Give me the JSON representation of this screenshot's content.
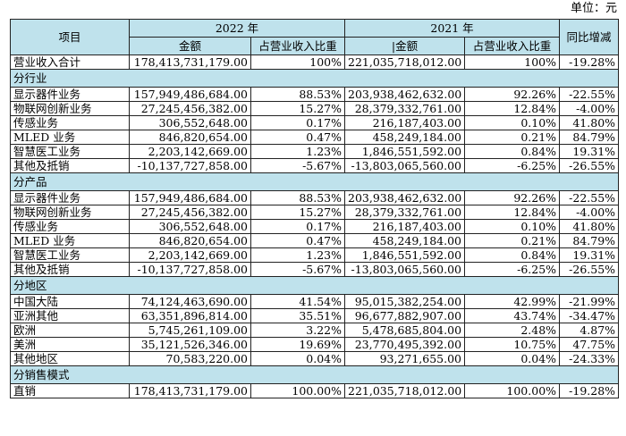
{
  "unit_label": "单位：元",
  "header": {
    "item": "项目",
    "year_2022": "2022 年",
    "year_2021": "2021 年",
    "amount_2022": "金额",
    "share_2022": "占营业收入比重",
    "amount_2021": "|金额",
    "share_2021": "占营业收入比重",
    "yoy": "同比增减"
  },
  "total": {
    "label": "营业收入合计",
    "amount_2022": "178,413,731,179.00",
    "share_2022": "100%",
    "amount_2021": "221,035,718,012.00",
    "share_2021": "100%",
    "yoy": "-19.28%"
  },
  "sections": [
    {
      "title": "分行业",
      "rows": [
        {
          "label": "显示器件业务",
          "amount_2022": "157,949,486,684.00",
          "share_2022": "88.53%",
          "amount_2021": "203,938,462,632.00",
          "share_2021": "92.26%",
          "yoy": "-22.55%"
        },
        {
          "label": "物联网创新业务",
          "amount_2022": "27,245,456,382.00",
          "share_2022": "15.27%",
          "amount_2021": "28,379,332,761.00",
          "share_2021": "12.84%",
          "yoy": "-4.00%"
        },
        {
          "label": "传感业务",
          "amount_2022": "306,552,648.00",
          "share_2022": "0.17%",
          "amount_2021": "216,187,403.00",
          "share_2021": "0.10%",
          "yoy": "41.80%"
        },
        {
          "label": "MLED 业务",
          "amount_2022": "846,820,654.00",
          "share_2022": "0.47%",
          "amount_2021": "458,249,184.00",
          "share_2021": "0.21%",
          "yoy": "84.79%"
        },
        {
          "label": "智慧医工业务",
          "amount_2022": "2,203,142,669.00",
          "share_2022": "1.23%",
          "amount_2021": "1,846,551,592.00",
          "share_2021": "0.84%",
          "yoy": "19.31%"
        },
        {
          "label": "其他及抵销",
          "amount_2022": "-10,137,727,858.00",
          "share_2022": "-5.67%",
          "amount_2021": "-13,803,065,560.00",
          "share_2021": "-6.25%",
          "yoy": "-26.55%"
        }
      ]
    },
    {
      "title": "分产品",
      "rows": [
        {
          "label": "显示器件业务",
          "amount_2022": "157,949,486,684.00",
          "share_2022": "88.53%",
          "amount_2021": "203,938,462,632.00",
          "share_2021": "92.26%",
          "yoy": "-22.55%"
        },
        {
          "label": "物联网创新业务",
          "amount_2022": "27,245,456,382.00",
          "share_2022": "15.27%",
          "amount_2021": "28,379,332,761.00",
          "share_2021": "12.84%",
          "yoy": "-4.00%"
        },
        {
          "label": "传感业务",
          "amount_2022": "306,552,648.00",
          "share_2022": "0.17%",
          "amount_2021": "216,187,403.00",
          "share_2021": "0.10%",
          "yoy": "41.80%"
        },
        {
          "label": "MLED 业务",
          "amount_2022": "846,820,654.00",
          "share_2022": "0.47%",
          "amount_2021": "458,249,184.00",
          "share_2021": "0.21%",
          "yoy": "84.79%"
        },
        {
          "label": "智慧医工业务",
          "amount_2022": "2,203,142,669.00",
          "share_2022": "1.23%",
          "amount_2021": "1,846,551,592.00",
          "share_2021": "0.84%",
          "yoy": "19.31%"
        },
        {
          "label": "其他及抵销",
          "amount_2022": "-10,137,727,858.00",
          "share_2022": "-5.67%",
          "amount_2021": "-13,803,065,560.00",
          "share_2021": "-6.25%",
          "yoy": "-26.55%"
        }
      ]
    },
    {
      "title": "分地区",
      "rows": [
        {
          "label": "中国大陆",
          "amount_2022": "74,124,463,690.00",
          "share_2022": "41.54%",
          "amount_2021": "95,015,382,254.00",
          "share_2021": "42.99%",
          "yoy": "-21.99%"
        },
        {
          "label": "亚洲其他",
          "amount_2022": "63,351,896,814.00",
          "share_2022": "35.51%",
          "amount_2021": "96,677,882,907.00",
          "share_2021": "43.74%",
          "yoy": "-34.47%"
        },
        {
          "label": "欧洲",
          "amount_2022": "5,745,261,109.00",
          "share_2022": "3.22%",
          "amount_2021": "5,478,685,804.00",
          "share_2021": "2.48%",
          "yoy": "4.87%"
        },
        {
          "label": "美洲",
          "amount_2022": "35,121,526,346.00",
          "share_2022": "19.69%",
          "amount_2021": "23,770,495,392.00",
          "share_2021": "10.75%",
          "yoy": "47.75%"
        },
        {
          "label": "其他地区",
          "amount_2022": "70,583,220.00",
          "share_2022": "0.04%",
          "amount_2021": "93,271,655.00",
          "share_2021": "0.04%",
          "yoy": "-24.33%"
        }
      ]
    },
    {
      "title": "分销售模式",
      "rows": [
        {
          "label": "直销",
          "amount_2022": "178,413,731,179.00",
          "share_2022": "100.00%",
          "amount_2021": "221,035,718,012.00",
          "share_2021": "100.00%",
          "yoy": "-19.28%"
        }
      ]
    }
  ]
}
